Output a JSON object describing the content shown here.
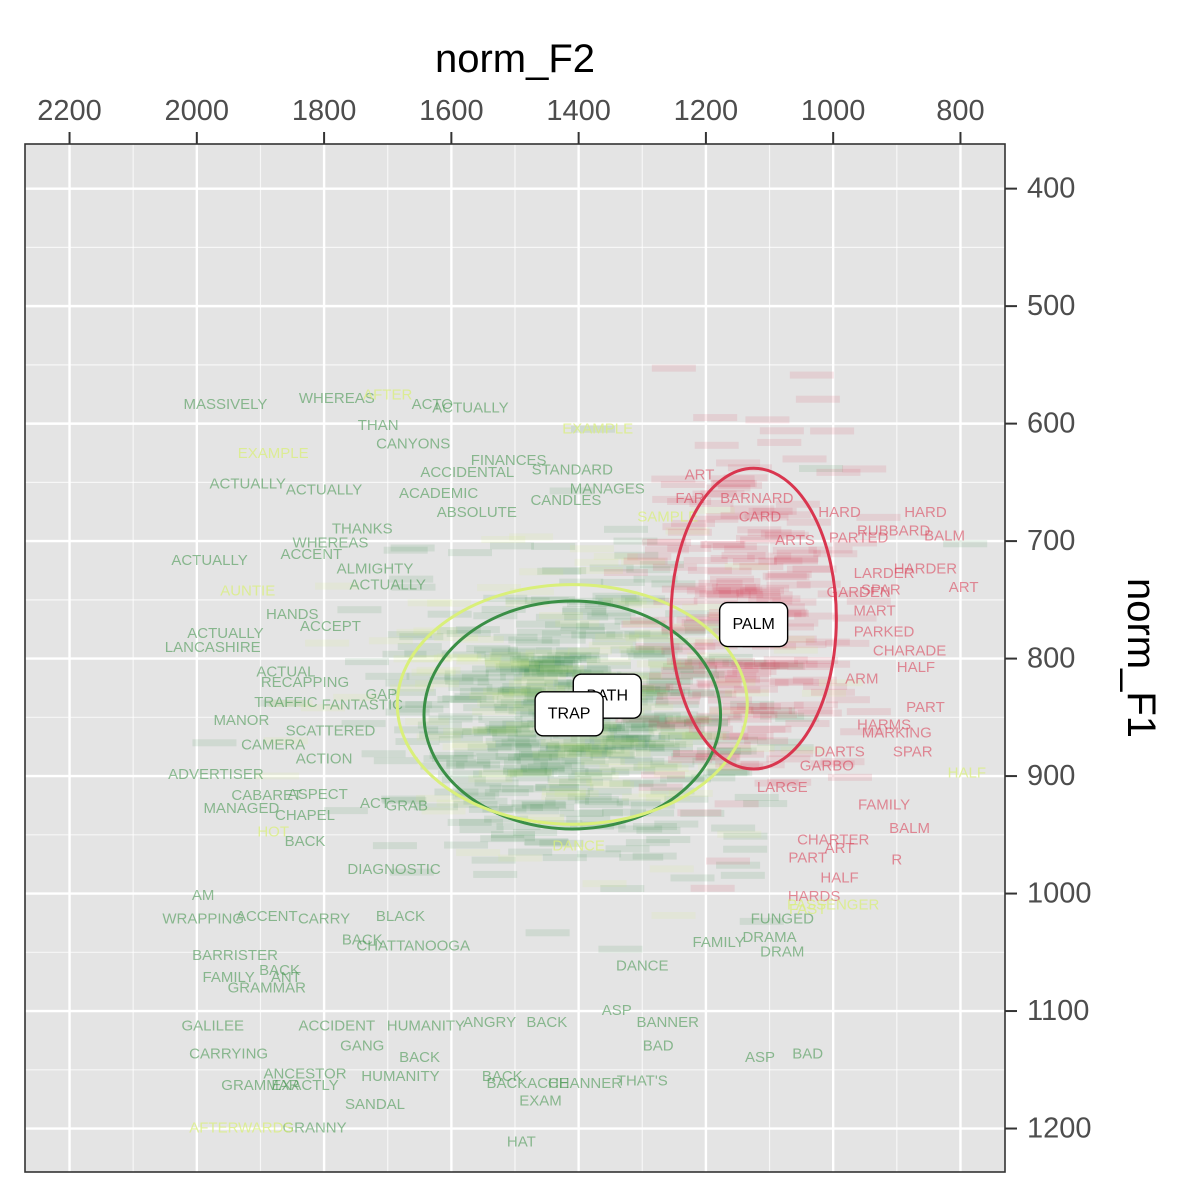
{
  "chart_data": {
    "type": "scatter",
    "title": "",
    "xlabel": "norm_F2",
    "ylabel": "norm_F1",
    "x_axis": {
      "position": "top",
      "reversed": true,
      "lim": [
        2270,
        730
      ],
      "ticks": [
        2200,
        2000,
        1800,
        1600,
        1400,
        1200,
        1000,
        800
      ]
    },
    "y_axis": {
      "position": "right",
      "reversed": true,
      "lim": [
        362,
        1237
      ],
      "ticks": [
        400,
        500,
        600,
        700,
        800,
        900,
        1000,
        1100,
        1200
      ]
    },
    "grid": true,
    "legend": "none",
    "colors": {
      "TRAP": "#3a8f46",
      "BATH": "#d9ef7a",
      "PALM": "#d9364f",
      "panel": "#e4e4e4",
      "grid": "#ffffff"
    },
    "series": [
      {
        "name": "TRAP",
        "color": "#3a8f46",
        "mean": [
          1415,
          847
        ],
        "ellipse": {
          "cx": 1410,
          "cy": 848,
          "rx": 233,
          "ry": 97
        }
      },
      {
        "name": "BATH",
        "color": "#d9ef7a",
        "mean": [
          1355,
          832
        ],
        "ellipse": {
          "cx": 1410,
          "cy": 839,
          "rx": 275,
          "ry": 102
        }
      },
      {
        "name": "PALM",
        "color": "#d9364f",
        "mean": [
          1125,
          771
        ],
        "ellipse": {
          "cx": 1125,
          "cy": 766,
          "rx": 130,
          "ry": 128
        }
      }
    ],
    "labels": [
      {
        "text": "TRAP",
        "x": 1415,
        "y": 847
      },
      {
        "text": "BATH",
        "x": 1355,
        "y": 832
      },
      {
        "text": "PALM",
        "x": 1125,
        "y": 771
      }
    ],
    "points": [
      {
        "word": "MASSIVELY",
        "x": 1955,
        "y": 584,
        "group": "TRAP"
      },
      {
        "word": "WHEREAS",
        "x": 1780,
        "y": 579,
        "group": "TRAP"
      },
      {
        "word": "AFTER",
        "x": 1700,
        "y": 576,
        "group": "BATH"
      },
      {
        "word": "ACTUALLY",
        "x": 1570,
        "y": 587,
        "group": "TRAP"
      },
      {
        "word": "ACTO",
        "x": 1630,
        "y": 584,
        "group": "TRAP"
      },
      {
        "word": "THAN",
        "x": 1715,
        "y": 602,
        "group": "TRAP"
      },
      {
        "word": "CANYONS",
        "x": 1660,
        "y": 618,
        "group": "TRAP"
      },
      {
        "word": "EXAMPLE",
        "x": 1370,
        "y": 605,
        "group": "BATH"
      },
      {
        "word": "EXAMPLE",
        "x": 1880,
        "y": 626,
        "group": "BATH"
      },
      {
        "word": "ACTUALLY",
        "x": 1920,
        "y": 652,
        "group": "TRAP"
      },
      {
        "word": "ACTUALLY",
        "x": 1800,
        "y": 657,
        "group": "TRAP"
      },
      {
        "word": "FINANCES",
        "x": 1510,
        "y": 632,
        "group": "TRAP"
      },
      {
        "word": "STANDARD",
        "x": 1410,
        "y": 640,
        "group": "TRAP"
      },
      {
        "word": "ACCIDENTAL",
        "x": 1575,
        "y": 642,
        "group": "TRAP"
      },
      {
        "word": "ACADEMIC",
        "x": 1620,
        "y": 660,
        "group": "TRAP"
      },
      {
        "word": "ABSOLUTE",
        "x": 1560,
        "y": 676,
        "group": "TRAP"
      },
      {
        "word": "MANAGES",
        "x": 1355,
        "y": 656,
        "group": "TRAP"
      },
      {
        "word": "CANDLES",
        "x": 1420,
        "y": 666,
        "group": "TRAP"
      },
      {
        "word": "SAMPLE",
        "x": 1260,
        "y": 680,
        "group": "BATH"
      },
      {
        "word": "THANKS",
        "x": 1740,
        "y": 690,
        "group": "TRAP"
      },
      {
        "word": "WHEREAS",
        "x": 1790,
        "y": 702,
        "group": "TRAP"
      },
      {
        "word": "ACCENT",
        "x": 1820,
        "y": 712,
        "group": "TRAP"
      },
      {
        "word": "ACTUALLY",
        "x": 1980,
        "y": 717,
        "group": "TRAP"
      },
      {
        "word": "AUNTIE",
        "x": 1920,
        "y": 743,
        "group": "BATH"
      },
      {
        "word": "ALMIGHTY",
        "x": 1720,
        "y": 724,
        "group": "TRAP"
      },
      {
        "word": "ACTUALLY",
        "x": 1700,
        "y": 738,
        "group": "TRAP"
      },
      {
        "word": "HANDS",
        "x": 1850,
        "y": 763,
        "group": "TRAP"
      },
      {
        "word": "ACCEPT",
        "x": 1790,
        "y": 773,
        "group": "TRAP"
      },
      {
        "word": "ACTUALLY",
        "x": 1955,
        "y": 779,
        "group": "TRAP"
      },
      {
        "word": "LANCASHIRE",
        "x": 1975,
        "y": 791,
        "group": "TRAP"
      },
      {
        "word": "ACTUAL",
        "x": 1860,
        "y": 812,
        "group": "TRAP"
      },
      {
        "word": "RECAPPING",
        "x": 1830,
        "y": 821,
        "group": "TRAP"
      },
      {
        "word": "GAP",
        "x": 1710,
        "y": 831,
        "group": "TRAP"
      },
      {
        "word": "TRAFFIC",
        "x": 1860,
        "y": 838,
        "group": "TRAP"
      },
      {
        "word": "FANTASTIC",
        "x": 1740,
        "y": 840,
        "group": "TRAP"
      },
      {
        "word": "MANOR",
        "x": 1930,
        "y": 853,
        "group": "TRAP"
      },
      {
        "word": "SCATTERED",
        "x": 1790,
        "y": 862,
        "group": "TRAP"
      },
      {
        "word": "CAMERA",
        "x": 1880,
        "y": 874,
        "group": "TRAP"
      },
      {
        "word": "ACTION",
        "x": 1800,
        "y": 886,
        "group": "TRAP"
      },
      {
        "word": "ADVERTISER",
        "x": 1970,
        "y": 899,
        "group": "TRAP"
      },
      {
        "word": "CABARET",
        "x": 1890,
        "y": 917,
        "group": "TRAP"
      },
      {
        "word": "ASPECT",
        "x": 1810,
        "y": 916,
        "group": "TRAP"
      },
      {
        "word": "MANAGED",
        "x": 1930,
        "y": 928,
        "group": "TRAP"
      },
      {
        "word": "CHAPEL",
        "x": 1830,
        "y": 934,
        "group": "TRAP"
      },
      {
        "word": "ACT",
        "x": 1720,
        "y": 924,
        "group": "TRAP"
      },
      {
        "word": "GRAB",
        "x": 1670,
        "y": 926,
        "group": "TRAP"
      },
      {
        "word": "HOT",
        "x": 1880,
        "y": 948,
        "group": "BATH"
      },
      {
        "word": "BACK",
        "x": 1830,
        "y": 956,
        "group": "TRAP"
      },
      {
        "word": "DIAGNOSTIC",
        "x": 1690,
        "y": 980,
        "group": "TRAP"
      },
      {
        "word": "AM",
        "x": 1990,
        "y": 1002,
        "group": "TRAP"
      },
      {
        "word": "WRAPPING",
        "x": 1990,
        "y": 1022,
        "group": "TRAP"
      },
      {
        "word": "ACCENT",
        "x": 1890,
        "y": 1020,
        "group": "TRAP"
      },
      {
        "word": "CARRY",
        "x": 1800,
        "y": 1022,
        "group": "TRAP"
      },
      {
        "word": "BLACK",
        "x": 1680,
        "y": 1020,
        "group": "TRAP"
      },
      {
        "word": "BACK",
        "x": 1740,
        "y": 1040,
        "group": "TRAP"
      },
      {
        "word": "BARRISTER",
        "x": 1940,
        "y": 1053,
        "group": "TRAP"
      },
      {
        "word": "FAMILY",
        "x": 1950,
        "y": 1072,
        "group": "TRAP"
      },
      {
        "word": "ANT",
        "x": 1860,
        "y": 1072,
        "group": "TRAP"
      },
      {
        "word": "BACK",
        "x": 1870,
        "y": 1066,
        "group": "TRAP"
      },
      {
        "word": "GRAMMAR",
        "x": 1890,
        "y": 1081,
        "group": "TRAP"
      },
      {
        "word": "GALILEE",
        "x": 1975,
        "y": 1113,
        "group": "TRAP"
      },
      {
        "word": "ACCIDENT",
        "x": 1780,
        "y": 1113,
        "group": "TRAP"
      },
      {
        "word": "HUMANITY",
        "x": 1640,
        "y": 1113,
        "group": "TRAP"
      },
      {
        "word": "CARRYING",
        "x": 1950,
        "y": 1137,
        "group": "TRAP"
      },
      {
        "word": "GANG",
        "x": 1740,
        "y": 1130,
        "group": "TRAP"
      },
      {
        "word": "BACK",
        "x": 1650,
        "y": 1140,
        "group": "TRAP"
      },
      {
        "word": "ANCESTOR",
        "x": 1830,
        "y": 1154,
        "group": "TRAP"
      },
      {
        "word": "GRAMMAR",
        "x": 1900,
        "y": 1164,
        "group": "TRAP"
      },
      {
        "word": "EXACTLY",
        "x": 1830,
        "y": 1164,
        "group": "TRAP"
      },
      {
        "word": "HUMANITY",
        "x": 1680,
        "y": 1156,
        "group": "TRAP"
      },
      {
        "word": "BACK",
        "x": 1520,
        "y": 1156,
        "group": "TRAP"
      },
      {
        "word": "BACKACHE",
        "x": 1480,
        "y": 1162,
        "group": "TRAP"
      },
      {
        "word": "CHANNER",
        "x": 1390,
        "y": 1162,
        "group": "TRAP"
      },
      {
        "word": "SANDAL",
        "x": 1720,
        "y": 1180,
        "group": "TRAP"
      },
      {
        "word": "EXAM",
        "x": 1460,
        "y": 1177,
        "group": "TRAP"
      },
      {
        "word": "GRANNY",
        "x": 1815,
        "y": 1200,
        "group": "TRAP"
      },
      {
        "word": "AFTERWARDS",
        "x": 1930,
        "y": 1200,
        "group": "BATH"
      },
      {
        "word": "HAT",
        "x": 1490,
        "y": 1212,
        "group": "TRAP"
      },
      {
        "word": "CHATTANOOGA",
        "x": 1660,
        "y": 1045,
        "group": "TRAP"
      },
      {
        "word": "ANGRY",
        "x": 1540,
        "y": 1110,
        "group": "TRAP"
      },
      {
        "word": "BACK",
        "x": 1450,
        "y": 1110,
        "group": "TRAP"
      },
      {
        "word": "ASP",
        "x": 1340,
        "y": 1100,
        "group": "TRAP"
      },
      {
        "word": "BANNER",
        "x": 1260,
        "y": 1110,
        "group": "TRAP"
      },
      {
        "word": "BAD",
        "x": 1275,
        "y": 1130,
        "group": "TRAP"
      },
      {
        "word": "ASP",
        "x": 1115,
        "y": 1140,
        "group": "TRAP"
      },
      {
        "word": "BAD",
        "x": 1040,
        "y": 1137,
        "group": "TRAP"
      },
      {
        "word": "THAT'S",
        "x": 1300,
        "y": 1160,
        "group": "TRAP"
      },
      {
        "word": "FAMILY",
        "x": 1180,
        "y": 1042,
        "group": "TRAP"
      },
      {
        "word": "FUNGED",
        "x": 1080,
        "y": 1022,
        "group": "TRAP"
      },
      {
        "word": "DRAM",
        "x": 1080,
        "y": 1050,
        "group": "TRAP"
      },
      {
        "word": "DANCE",
        "x": 1300,
        "y": 1062,
        "group": "TRAP"
      },
      {
        "word": "DANCE",
        "x": 1420,
        "y": 837,
        "group": "BATH"
      },
      {
        "word": "DANCE",
        "x": 1400,
        "y": 960,
        "group": "BATH"
      },
      {
        "word": "ART",
        "x": 1210,
        "y": 644,
        "group": "PALM"
      },
      {
        "word": "FAR",
        "x": 1225,
        "y": 664,
        "group": "PALM"
      },
      {
        "word": "BARNARD",
        "x": 1120,
        "y": 664,
        "group": "PALM"
      },
      {
        "word": "HARD",
        "x": 990,
        "y": 676,
        "group": "PALM"
      },
      {
        "word": "HARD",
        "x": 855,
        "y": 676,
        "group": "PALM"
      },
      {
        "word": "RUBBARD",
        "x": 905,
        "y": 692,
        "group": "PALM"
      },
      {
        "word": "BALM",
        "x": 825,
        "y": 696,
        "group": "PALM"
      },
      {
        "word": "PARTED",
        "x": 960,
        "y": 698,
        "group": "PALM"
      },
      {
        "word": "CARD",
        "x": 1115,
        "y": 680,
        "group": "PALM"
      },
      {
        "word": "ARTS",
        "x": 1060,
        "y": 700,
        "group": "PALM"
      },
      {
        "word": "HARDER",
        "x": 855,
        "y": 724,
        "group": "PALM"
      },
      {
        "word": "ART",
        "x": 795,
        "y": 740,
        "group": "PALM"
      },
      {
        "word": "LARDER",
        "x": 920,
        "y": 728,
        "group": "PALM"
      },
      {
        "word": "GARDEN",
        "x": 960,
        "y": 744,
        "group": "PALM"
      },
      {
        "word": "SPAR",
        "x": 925,
        "y": 742,
        "group": "PALM"
      },
      {
        "word": "MART",
        "x": 935,
        "y": 760,
        "group": "PALM"
      },
      {
        "word": "PARKED",
        "x": 920,
        "y": 778,
        "group": "PALM"
      },
      {
        "word": "CHARADE",
        "x": 880,
        "y": 794,
        "group": "PALM"
      },
      {
        "word": "HALF",
        "x": 870,
        "y": 808,
        "group": "PALM"
      },
      {
        "word": "ARM",
        "x": 955,
        "y": 818,
        "group": "PALM"
      },
      {
        "word": "PART",
        "x": 855,
        "y": 842,
        "group": "PALM"
      },
      {
        "word": "HARMS",
        "x": 920,
        "y": 857,
        "group": "PALM"
      },
      {
        "word": "MARKING",
        "x": 900,
        "y": 864,
        "group": "PALM"
      },
      {
        "word": "DARTS",
        "x": 990,
        "y": 880,
        "group": "PALM"
      },
      {
        "word": "SPAR",
        "x": 875,
        "y": 880,
        "group": "PALM"
      },
      {
        "word": "HALF",
        "x": 790,
        "y": 898,
        "group": "BATH"
      },
      {
        "word": "GARBO",
        "x": 1010,
        "y": 892,
        "group": "PALM"
      },
      {
        "word": "FAMILY",
        "x": 920,
        "y": 925,
        "group": "PALM"
      },
      {
        "word": "LARGE",
        "x": 1080,
        "y": 910,
        "group": "PALM"
      },
      {
        "word": "BALM",
        "x": 880,
        "y": 945,
        "group": "PALM"
      },
      {
        "word": "ART",
        "x": 990,
        "y": 962,
        "group": "PALM"
      },
      {
        "word": "PART",
        "x": 1040,
        "y": 970,
        "group": "PALM"
      },
      {
        "word": "HALF",
        "x": 990,
        "y": 987,
        "group": "PALM"
      },
      {
        "word": "R",
        "x": 900,
        "y": 972,
        "group": "PALM"
      },
      {
        "word": "CHARTER",
        "x": 1000,
        "y": 955,
        "group": "PALM"
      },
      {
        "word": "HARDS",
        "x": 1030,
        "y": 1003,
        "group": "PALM"
      },
      {
        "word": "DRAMA",
        "x": 1100,
        "y": 1038,
        "group": "TRAP"
      },
      {
        "word": "FAST",
        "x": 1040,
        "y": 1014,
        "group": "BATH"
      },
      {
        "word": "PASSENGER",
        "x": 1000,
        "y": 1010,
        "group": "BATH"
      }
    ]
  }
}
